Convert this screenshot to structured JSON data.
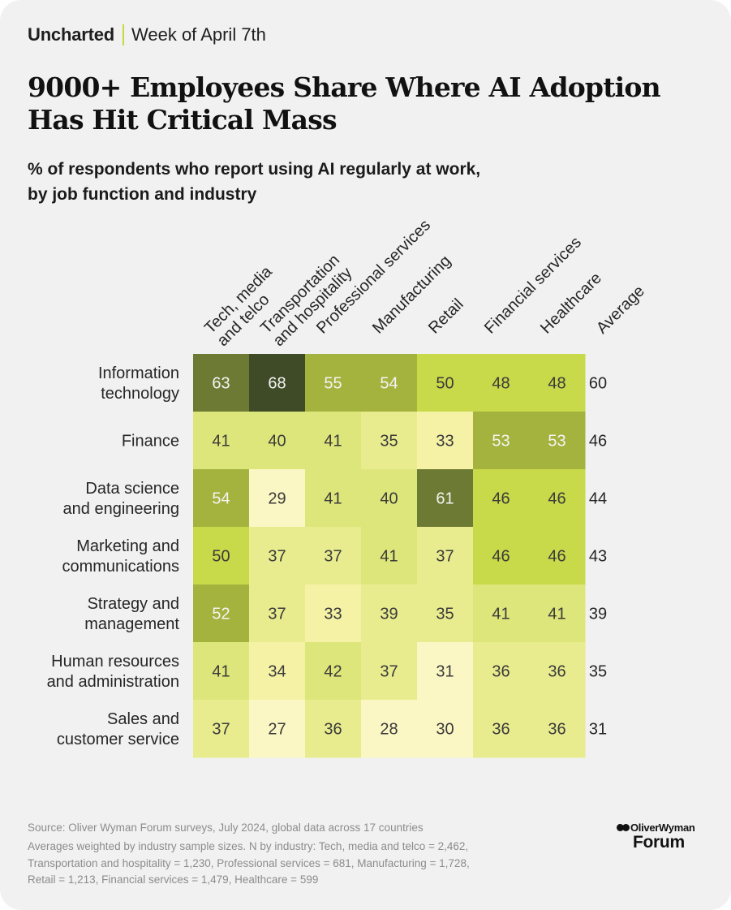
{
  "header": {
    "brand": "Uncharted",
    "week": "Week of April 7th",
    "title_line1": "9000+ Employees Share Where AI Adoption",
    "title_line2": "Has Hit Critical Mass",
    "subtitle_line1": "% of respondents who report using AI regularly at work,",
    "subtitle_line2": "by job function and industry"
  },
  "chart_data": {
    "type": "heatmap",
    "title": "% of respondents who report using AI regularly at work, by job function and industry",
    "columns": [
      {
        "label": [
          "Tech, media",
          "and telco"
        ]
      },
      {
        "label": [
          "Transportation",
          "and hospitality"
        ]
      },
      {
        "label": [
          "Professional services"
        ]
      },
      {
        "label": [
          "Manufacturing"
        ]
      },
      {
        "label": [
          "Retail"
        ]
      },
      {
        "label": [
          "Financial services"
        ]
      },
      {
        "label": [
          "Healthcare"
        ]
      }
    ],
    "average_label": "Average",
    "rows": [
      {
        "label": [
          "Information",
          "technology"
        ],
        "values": [
          63,
          68,
          55,
          54,
          50,
          48,
          48
        ],
        "average": 60
      },
      {
        "label": [
          "Finance"
        ],
        "values": [
          41,
          40,
          41,
          35,
          33,
          53,
          53
        ],
        "average": 46
      },
      {
        "label": [
          "Data science",
          "and engineering"
        ],
        "values": [
          54,
          29,
          41,
          40,
          61,
          46,
          46
        ],
        "average": 44
      },
      {
        "label": [
          "Marketing and",
          "communications"
        ],
        "values": [
          50,
          37,
          37,
          41,
          37,
          46,
          46
        ],
        "average": 43
      },
      {
        "label": [
          "Strategy and",
          "management"
        ],
        "values": [
          52,
          37,
          33,
          39,
          35,
          41,
          41
        ],
        "average": 39
      },
      {
        "label": [
          "Human resources",
          "and administration"
        ],
        "values": [
          41,
          34,
          42,
          37,
          31,
          36,
          36
        ],
        "average": 35
      },
      {
        "label": [
          "Sales and",
          "customer service"
        ],
        "values": [
          37,
          27,
          36,
          28,
          30,
          36,
          36
        ],
        "average": 31
      }
    ],
    "colors": {
      "scale": [
        "#fbf7c4",
        "#f5f2a6",
        "#e8ec8e",
        "#dde67a",
        "#c8d94a",
        "#a4b33e",
        "#7f8f39",
        "#6c7a33",
        "#3f4a26"
      ],
      "text_light": "#f4f4f4",
      "text_dark": "#3a3a3a"
    }
  },
  "footer": {
    "source": "Source: Oliver Wyman Forum surveys, July 2024, global data across 17 countries",
    "note_line1": "Averages weighted by industry sample sizes. N by industry: Tech, media and telco = 2,462,",
    "note_line2": "Transportation and hospitality = 1,230, Professional services = 681, Manufacturing = 1,728,",
    "note_line3": "Retail = 1,213, Financial services = 1,479, Healthcare = 599",
    "logo_top": "OliverWyman",
    "logo_bottom": "Forum"
  }
}
